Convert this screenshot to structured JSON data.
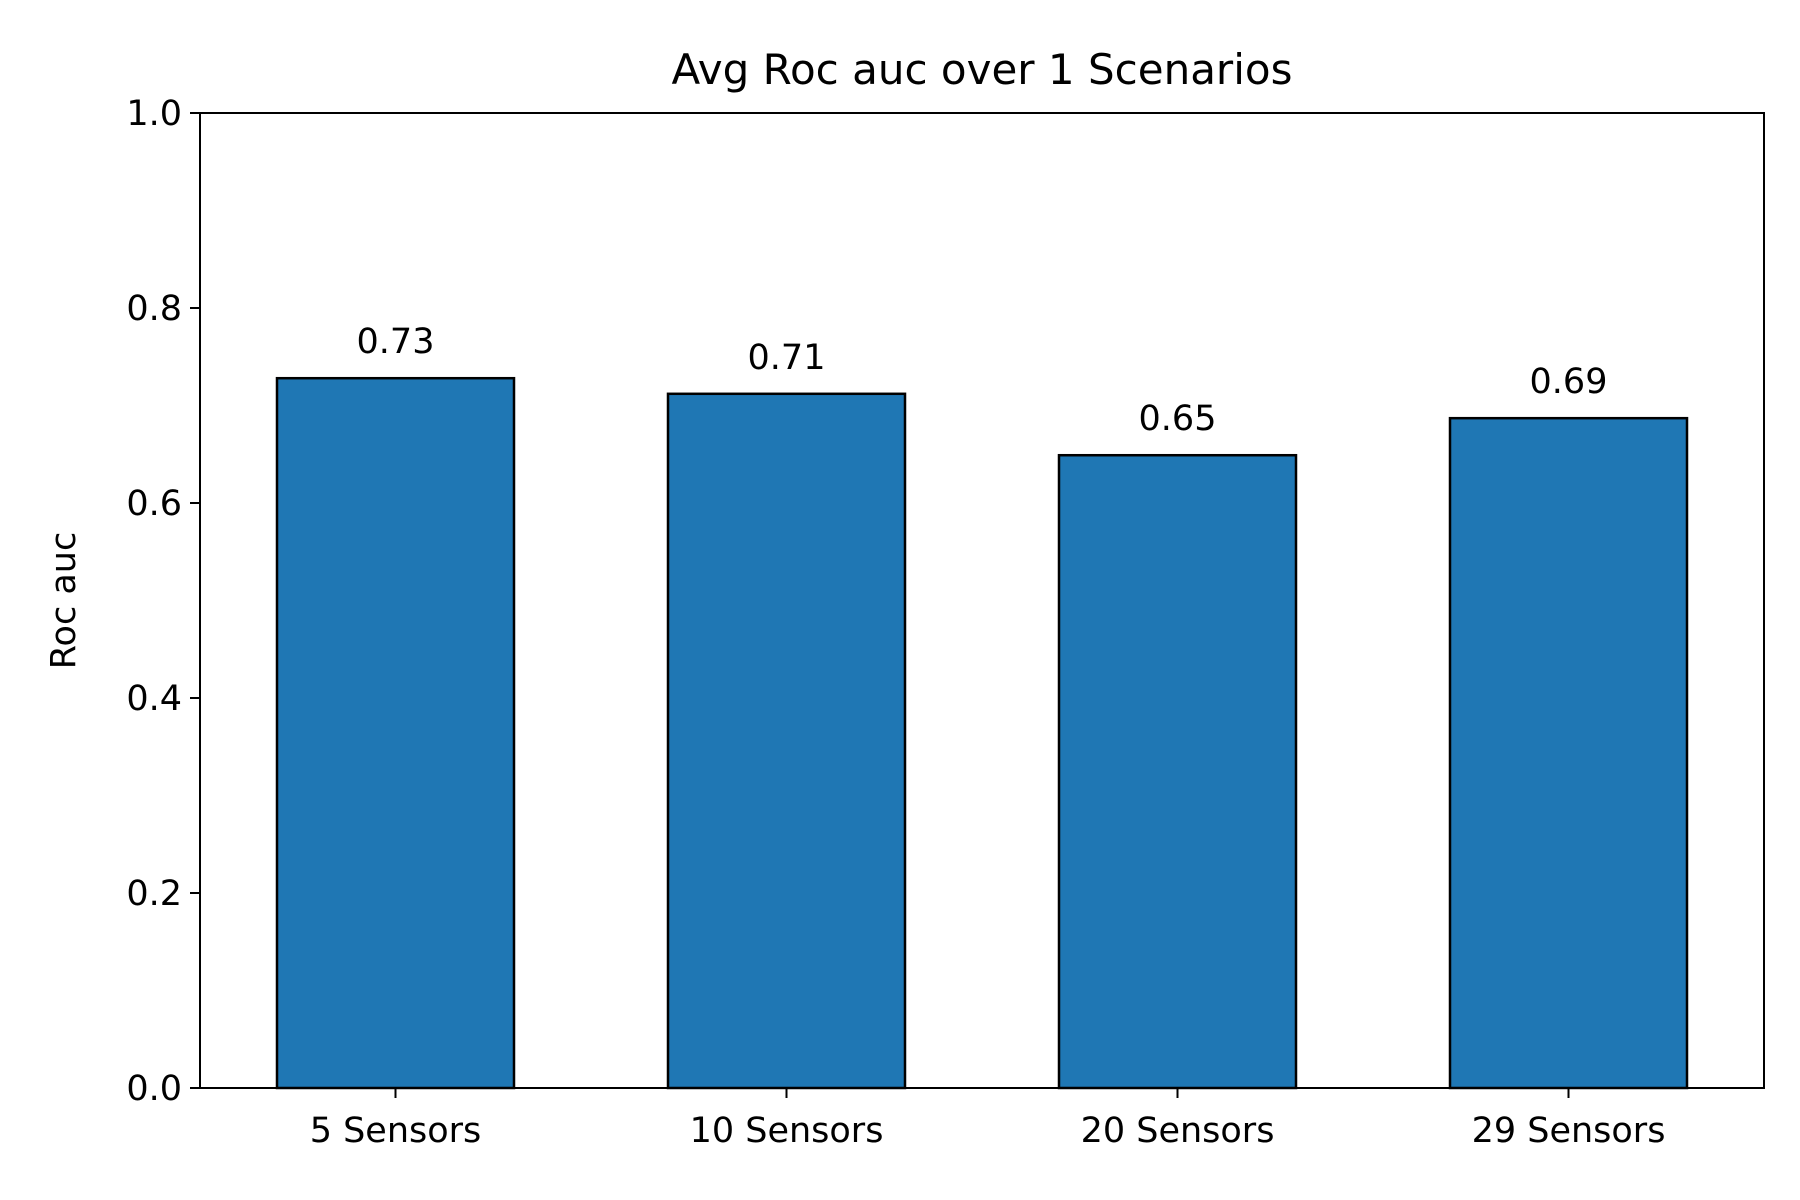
{
  "chart_data": {
    "type": "bar",
    "title": "Avg Roc auc over 1 Scenarios",
    "xlabel": "",
    "ylabel": "Roc auc",
    "categories": [
      "5 Sensors",
      "10 Sensors",
      "20 Sensors",
      "29 Sensors"
    ],
    "values": [
      0.728,
      0.712,
      0.649,
      0.687
    ],
    "value_labels": [
      "0.73",
      "0.71",
      "0.65",
      "0.69"
    ],
    "ylim": [
      0.0,
      1.0
    ],
    "yticks": [
      0.0,
      0.2,
      0.4,
      0.6,
      0.8,
      1.0
    ],
    "ytick_labels": [
      "0.0",
      "0.2",
      "0.4",
      "0.6",
      "0.8",
      "1.0"
    ],
    "grid": false,
    "bar_color": "#1f77b4",
    "edge_color": "#000000"
  }
}
